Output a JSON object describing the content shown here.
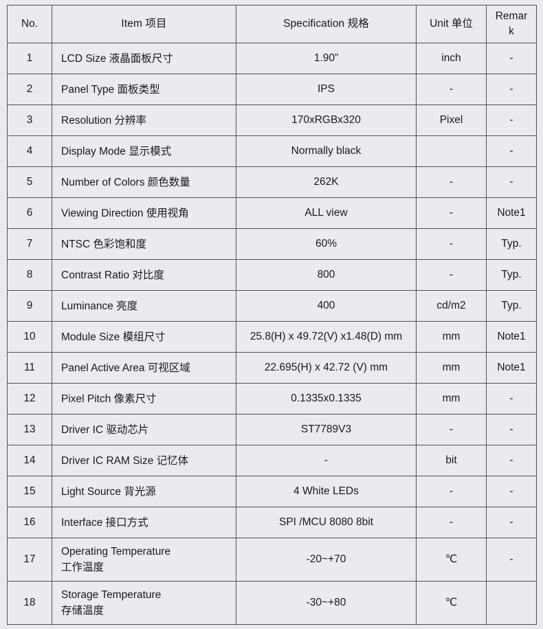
{
  "colors": {
    "page_bg": "#e9ebf1",
    "grid_border": "#4d5056",
    "text": "#17191c"
  },
  "table": {
    "headers": {
      "no": "No.",
      "item": "Item 项目",
      "spec": "Specification 规格",
      "unit": "Unit 单位",
      "remark": "Remark"
    },
    "rows": [
      {
        "no": "1",
        "item": "LCD Size 液晶面板尺寸",
        "spec": "1.90”",
        "unit": "inch",
        "remark": "-"
      },
      {
        "no": "2",
        "item": "Panel Type 面板类型",
        "spec": "IPS",
        "unit": "-",
        "remark": "-"
      },
      {
        "no": "3",
        "item": "Resolution 分辨率",
        "spec": "170xRGBx320",
        "unit": "Pixel",
        "remark": "-"
      },
      {
        "no": "4",
        "item": "Display Mode 显示模式",
        "spec": "Normally black",
        "unit": "",
        "remark": "-"
      },
      {
        "no": "5",
        "item": "Number of Colors 颜色数量",
        "spec": "262K",
        "unit": "-",
        "remark": "-"
      },
      {
        "no": "6",
        "item": "Viewing Direction 使用视角",
        "spec": "ALL view",
        "unit": "-",
        "remark": "Note1"
      },
      {
        "no": "7",
        "item": "NTSC 色彩饱和度",
        "spec": "60%",
        "unit": "-",
        "remark": "Typ."
      },
      {
        "no": "8",
        "item": "Contrast Ratio 对比度",
        "spec": "800",
        "unit": "-",
        "remark": "Typ."
      },
      {
        "no": "9",
        "item": "Luminance 亮度",
        "spec": "400",
        "unit": "cd/m2",
        "remark": "Typ."
      },
      {
        "no": "10",
        "item": "Module Size 模组尺寸",
        "spec": "25.8(H) x 49.72(V) x1.48(D) mm",
        "unit": "mm",
        "remark": "Note1"
      },
      {
        "no": "11",
        "item": "Panel Active Area 可视区域",
        "spec": "22.695(H) x 42.72 (V) mm",
        "unit": "mm",
        "remark": "Note1"
      },
      {
        "no": "12",
        "item": "Pixel Pitch 像素尺寸",
        "spec": "0.1335x0.1335",
        "unit": "mm",
        "remark": "-"
      },
      {
        "no": "13",
        "item": "Driver IC 驱动芯片",
        "spec": "ST7789V3",
        "unit": "-",
        "remark": "-"
      },
      {
        "no": "14",
        "item": "Driver IC RAM Size 记忆体",
        "spec": "-",
        "unit": "bit",
        "remark": "-"
      },
      {
        "no": "15",
        "item": "Light Source 背光源",
        "spec": "4 White LEDs",
        "unit": "-",
        "remark": "-"
      },
      {
        "no": "16",
        "item": "Interface 接口方式",
        "spec": "SPI /MCU 8080 8bit",
        "unit": "-",
        "remark": "-"
      },
      {
        "no": "17",
        "item": "Operating Temperature\n工作温度",
        "spec": "-20~+70",
        "unit": "℃",
        "remark": "-"
      },
      {
        "no": "18",
        "item": "Storage Temperature\n存储温度",
        "spec": "-30~+80",
        "unit": "℃",
        "remark": ""
      }
    ]
  }
}
